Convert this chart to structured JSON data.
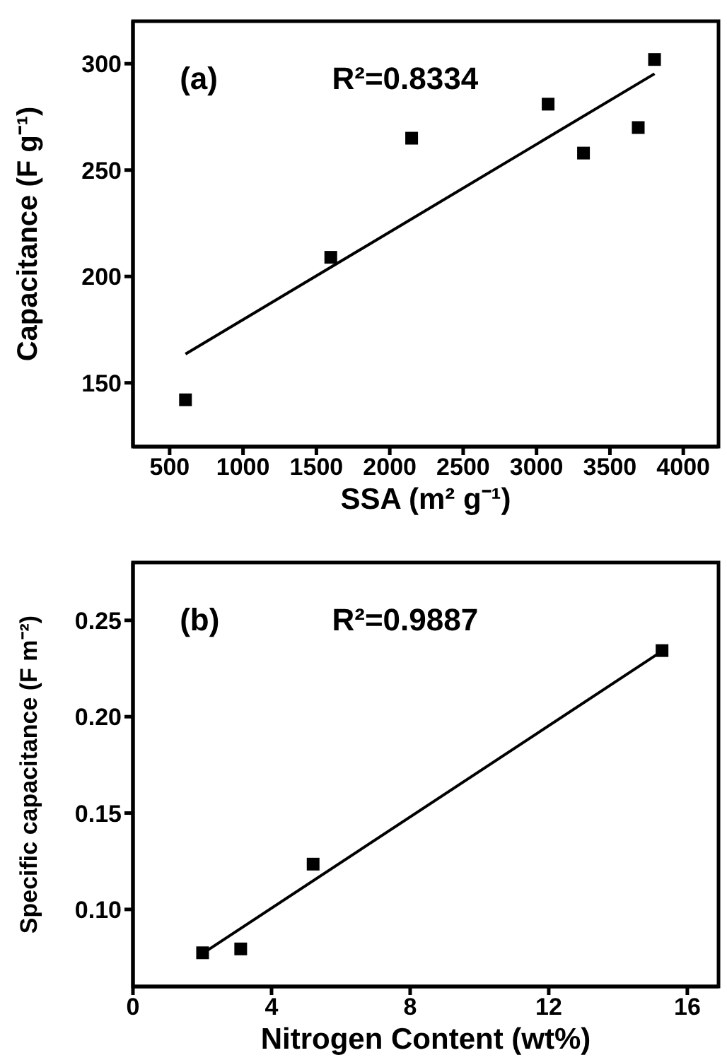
{
  "chart_data": [
    {
      "type": "scatter",
      "xlabel": "SSA (m² g⁻¹)",
      "ylabel": "Capacitance (F g⁻¹)",
      "annotations": [
        "(a)",
        "R²=0.8334"
      ],
      "xlim": [
        250,
        4240
      ],
      "ylim": [
        120,
        320
      ],
      "xticks": [
        500,
        1000,
        1500,
        2000,
        2500,
        3000,
        3500,
        4000
      ],
      "yticks": [
        150,
        200,
        250,
        300
      ],
      "grid": false,
      "legend": false,
      "marker": "square",
      "series": [
        {
          "color": "#000000",
          "x": [
            608,
            1598,
            2149,
            3079,
            3320,
            3693,
            3804
          ],
          "values": [
            142,
            209,
            265,
            281,
            258,
            270,
            302
          ]
        },
        {
          "type": "line",
          "color": "#000000",
          "marker": "none",
          "x": [
            608,
            3804
          ],
          "values": [
            163.5,
            295.3
          ]
        }
      ]
    },
    {
      "type": "scatter",
      "xlabel": "Nitrogen Content (wt%)",
      "ylabel": "Specific capacitance (F m⁻²)",
      "annotations": [
        "(b)",
        "R²=0.9887"
      ],
      "xlim": [
        0,
        16.9
      ],
      "ylim": [
        0.06,
        0.28
      ],
      "xticks": [
        0,
        4,
        8,
        12,
        16
      ],
      "yticks": [
        {
          "value": 0.1,
          "label": "0.10"
        },
        0.15,
        {
          "value": 0.2,
          "label": "0.20"
        },
        0.25
      ],
      "grid": false,
      "legend": false,
      "marker": "square",
      "series": [
        {
          "color": "#000000",
          "x": [
            2.01,
            3.11,
            5.2,
            15.27
          ],
          "values": [
            0.0775,
            0.0795,
            0.1235,
            0.2343
          ]
        },
        {
          "type": "line",
          "color": "#000000",
          "marker": "none",
          "x": [
            2.0,
            15.27
          ],
          "values": [
            0.077,
            0.234
          ]
        }
      ]
    }
  ]
}
